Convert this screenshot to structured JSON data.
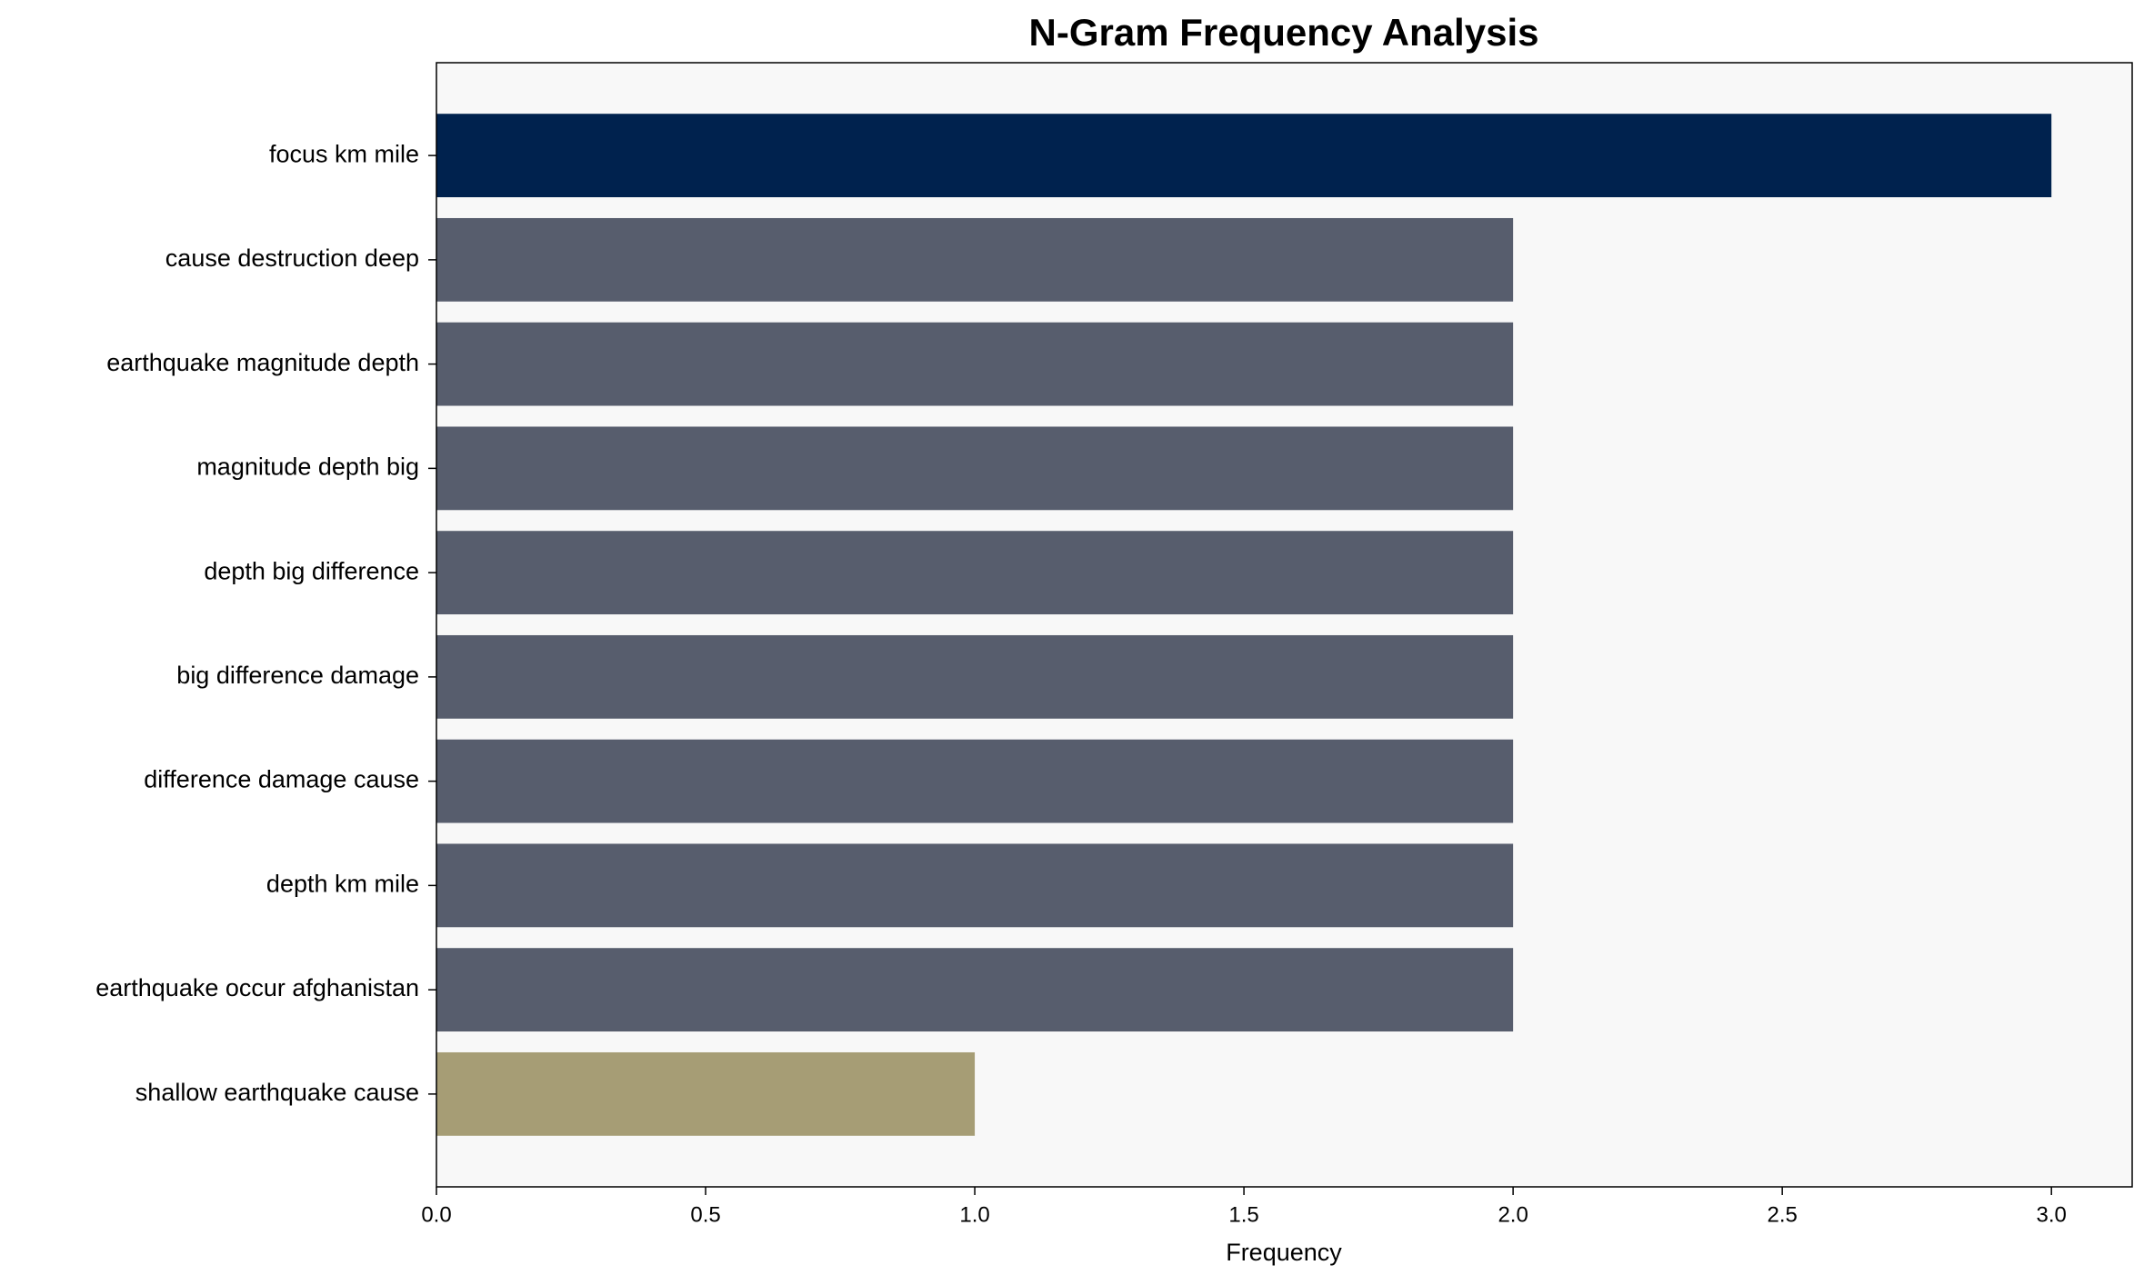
{
  "chart_data": {
    "type": "bar",
    "orientation": "horizontal",
    "title": "N-Gram Frequency Analysis",
    "x_label": "Frequency",
    "categories": [
      "focus km mile",
      "cause destruction deep",
      "earthquake magnitude depth",
      "magnitude depth big",
      "depth big difference",
      "big difference damage",
      "difference damage cause",
      "depth km mile",
      "earthquake occur afghanistan",
      "shallow earthquake cause"
    ],
    "values": [
      3,
      2,
      2,
      2,
      2,
      2,
      2,
      2,
      2,
      1
    ],
    "colors": [
      "#00224e",
      "#575d6d",
      "#575d6d",
      "#575d6d",
      "#575d6d",
      "#575d6d",
      "#575d6d",
      "#575d6d",
      "#575d6d",
      "#a69d75"
    ],
    "xlim": [
      0,
      3.15
    ],
    "xticks": [
      {
        "value": 0,
        "label": "0.0"
      },
      {
        "value": 0.5,
        "label": "0.5"
      },
      {
        "value": 1,
        "label": "1.0"
      },
      {
        "value": 1.5,
        "label": "1.5"
      },
      {
        "value": 2,
        "label": "2.0"
      },
      {
        "value": 2.5,
        "label": "2.5"
      },
      {
        "value": 3,
        "label": "3.0"
      }
    ],
    "background": "#f8f8f8"
  }
}
